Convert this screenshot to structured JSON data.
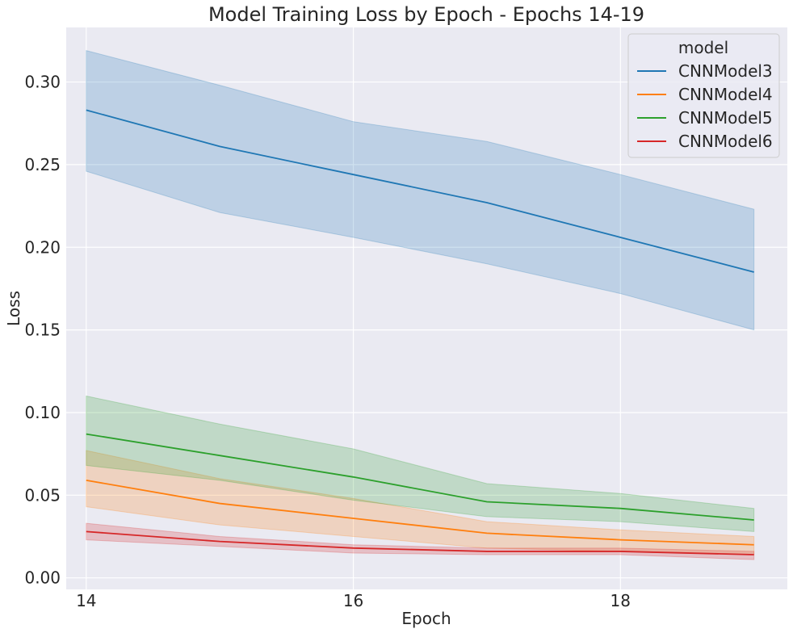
{
  "chart_data": {
    "type": "line",
    "title": "Model Training Loss by Epoch - Epochs 14-19",
    "xlabel": "Epoch",
    "ylabel": "Loss",
    "xlim": [
      13.85,
      19.25
    ],
    "ylim": [
      -0.007,
      0.333
    ],
    "x_ticks": [
      14,
      16,
      18
    ],
    "y_ticks": [
      0.0,
      0.05,
      0.1,
      0.15,
      0.2,
      0.25,
      0.3
    ],
    "y_tick_labels": [
      "0.00",
      "0.05",
      "0.10",
      "0.15",
      "0.20",
      "0.25",
      "0.30"
    ],
    "grid": true,
    "background": "#eaeaf2",
    "legend": {
      "title": "model",
      "position": "top-right"
    },
    "x": [
      14,
      15,
      16,
      17,
      18,
      19
    ],
    "series": [
      {
        "name": "CNNModel3",
        "color": "#1f77b4",
        "values": [
          0.283,
          0.261,
          0.244,
          0.227,
          0.206,
          0.185
        ],
        "lower": [
          0.246,
          0.221,
          0.206,
          0.19,
          0.172,
          0.15
        ],
        "upper": [
          0.319,
          0.298,
          0.276,
          0.264,
          0.244,
          0.223
        ]
      },
      {
        "name": "CNNModel4",
        "color": "#ff7f0e",
        "values": [
          0.059,
          0.045,
          0.036,
          0.027,
          0.023,
          0.02
        ],
        "lower": [
          0.043,
          0.032,
          0.025,
          0.018,
          0.016,
          0.014
        ],
        "upper": [
          0.077,
          0.06,
          0.048,
          0.034,
          0.029,
          0.025
        ]
      },
      {
        "name": "CNNModel5",
        "color": "#2ca02c",
        "values": [
          0.087,
          0.074,
          0.061,
          0.046,
          0.042,
          0.035
        ],
        "lower": [
          0.068,
          0.059,
          0.047,
          0.037,
          0.034,
          0.028
        ],
        "upper": [
          0.11,
          0.093,
          0.078,
          0.057,
          0.051,
          0.042
        ]
      },
      {
        "name": "CNNModel6",
        "color": "#d62728",
        "values": [
          0.028,
          0.022,
          0.018,
          0.016,
          0.016,
          0.014
        ],
        "lower": [
          0.023,
          0.019,
          0.015,
          0.014,
          0.014,
          0.011
        ],
        "upper": [
          0.033,
          0.025,
          0.02,
          0.018,
          0.018,
          0.016
        ]
      }
    ]
  }
}
